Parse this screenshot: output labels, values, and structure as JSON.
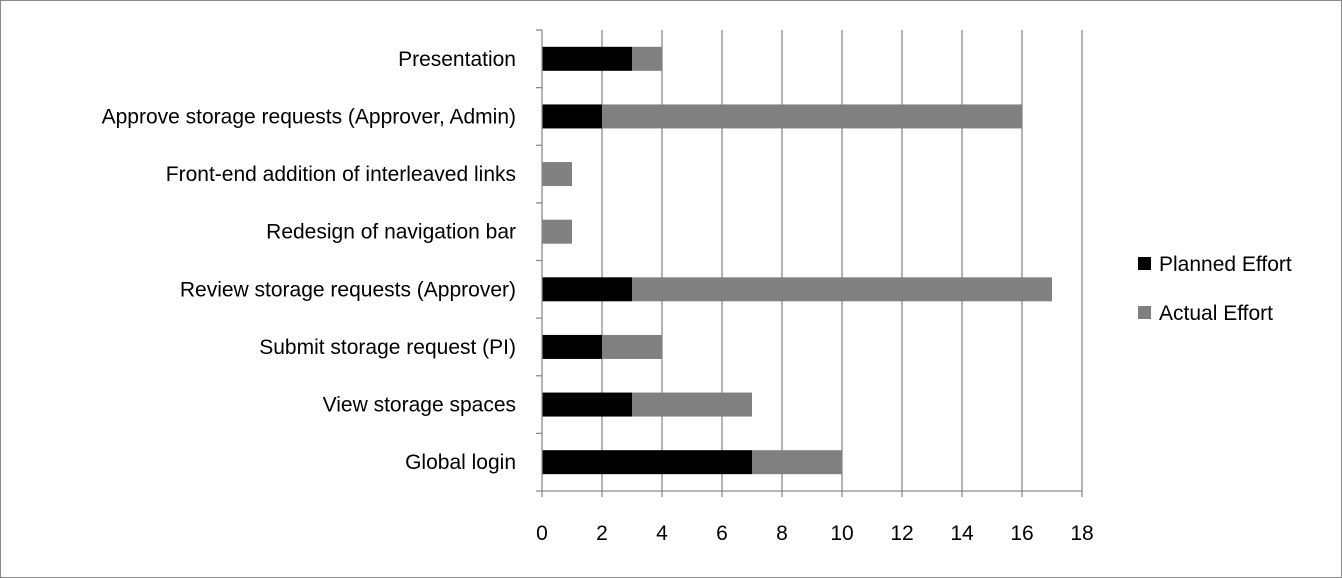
{
  "chart_data": {
    "type": "bar",
    "orientation": "horizontal",
    "stacked": true,
    "categories": [
      "Global login",
      "View storage spaces",
      "Submit storage request (PI)",
      "Review storage requests (Approver)",
      "Redesign of navigation bar",
      "Front-end addition of interleaved links",
      "Approve storage requests (Approver, Admin)",
      "Presentation"
    ],
    "series": [
      {
        "name": "Planned Effort",
        "color": "#000000",
        "values": [
          7,
          3,
          2,
          3,
          0,
          0,
          2,
          3
        ]
      },
      {
        "name": "Actual Effort",
        "color": "#808080",
        "values": [
          3,
          4,
          2,
          14,
          1,
          1,
          14,
          1
        ]
      }
    ],
    "xlim": [
      0,
      18
    ],
    "xticks": [
      0,
      2,
      4,
      6,
      8,
      10,
      12,
      14,
      16,
      18
    ],
    "grid": "vertical",
    "legend": "right",
    "title": "",
    "xlabel": "",
    "ylabel": ""
  }
}
